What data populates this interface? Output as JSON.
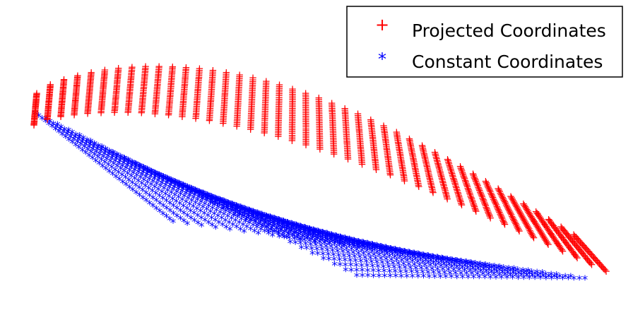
{
  "chart_data": {
    "type": "scatter",
    "title": "",
    "xlabel": "",
    "ylabel": "",
    "axes_visible": false,
    "grid": false,
    "legend_position": "top-right",
    "series": [
      {
        "name": "Projected Coordinates",
        "marker": "+",
        "color": "#ff0000",
        "shape": "curved sheet (upper surface)",
        "grid_size": [
          42,
          30
        ]
      },
      {
        "name": "Constant Coordinates",
        "marker": "*",
        "color": "#0000ff",
        "shape": "flat sheet (lower surface)",
        "grid_size": [
          42,
          30
        ]
      }
    ]
  }
}
